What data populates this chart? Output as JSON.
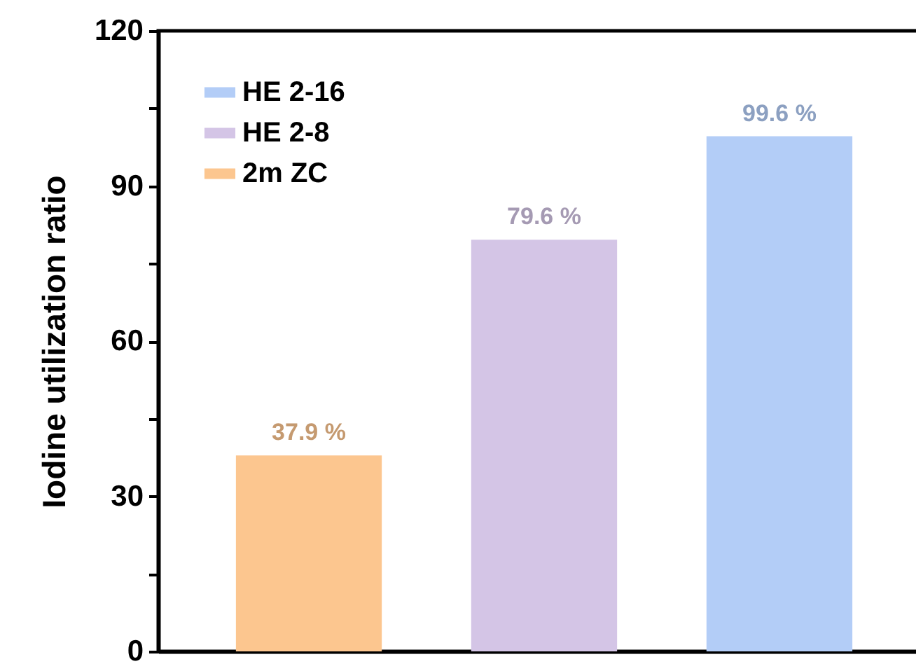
{
  "chart_data": {
    "type": "bar",
    "ylabel": "Iodine utilization ratio",
    "categories": [
      null,
      null,
      null
    ],
    "series": [
      {
        "name": "HE 2-16",
        "color": "#b3cdf7",
        "values": [
          null,
          null,
          99.6
        ],
        "value_labels": [
          null,
          null,
          "99.6 %"
        ]
      },
      {
        "name": "HE 2-8",
        "color": "#d4c5e6",
        "values": [
          null,
          79.6,
          null
        ],
        "value_labels": [
          null,
          "79.6 %",
          null
        ]
      },
      {
        "name": "2m ZC",
        "color": "#fcc68f",
        "values": [
          37.9,
          null,
          null
        ],
        "value_labels": [
          "37.9 %",
          null,
          null
        ]
      }
    ],
    "ylim": [
      0,
      120
    ],
    "yticks": [
      0,
      {
        "value": 15,
        "label": null
      },
      30,
      {
        "value": 45,
        "label": null
      },
      60,
      {
        "value": 75,
        "label": null
      },
      90,
      {
        "value": 105,
        "label": null
      },
      120
    ],
    "tick_labels": "y",
    "legend": "top left",
    "grid": false
  }
}
